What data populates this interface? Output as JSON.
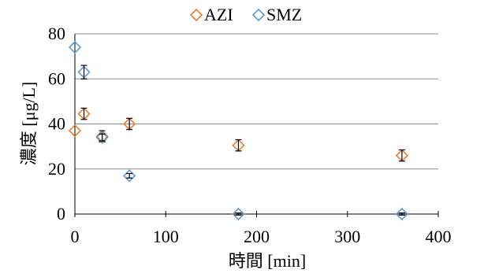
{
  "chart_data": {
    "type": "scatter",
    "xlabel": "時間 [min]",
    "ylabel": "濃度 [μg/L]",
    "xlim": [
      0,
      400
    ],
    "ylim": [
      0,
      80
    ],
    "x_ticks": [
      0,
      100,
      200,
      300,
      400
    ],
    "y_ticks": [
      0,
      20,
      40,
      60,
      80
    ],
    "grid": "horizontal",
    "legend_position": "top",
    "series": [
      {
        "name": "AZI",
        "color": "#ED7D31",
        "marker": "diamond-open",
        "points": [
          {
            "x": 0,
            "y": 37,
            "err": 0
          },
          {
            "x": 10,
            "y": 44.5,
            "err": 2.5
          },
          {
            "x": 30,
            "y": 34.5,
            "err": 2.5
          },
          {
            "x": 60,
            "y": 40,
            "err": 2.5
          },
          {
            "x": 180,
            "y": 30.5,
            "err": 2.5
          },
          {
            "x": 360,
            "y": 26,
            "err": 2.5
          }
        ]
      },
      {
        "name": "SMZ",
        "color": "#5B9BD5",
        "marker": "diamond-open",
        "points": [
          {
            "x": 0,
            "y": 74,
            "err": 0
          },
          {
            "x": 10,
            "y": 63,
            "err": 3
          },
          {
            "x": 30,
            "y": 34,
            "err": 1.5
          },
          {
            "x": 60,
            "y": 17,
            "err": 1
          },
          {
            "x": 180,
            "y": 0,
            "err": 0.5
          },
          {
            "x": 360,
            "y": 0,
            "err": 0.5
          }
        ]
      }
    ]
  }
}
